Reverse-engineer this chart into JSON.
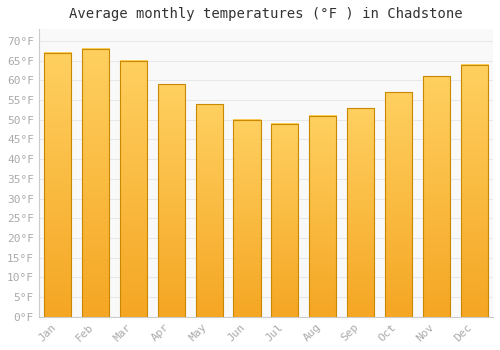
{
  "title": "Average monthly temperatures (°F ) in Chadstone",
  "months": [
    "Jan",
    "Feb",
    "Mar",
    "Apr",
    "May",
    "Jun",
    "Jul",
    "Aug",
    "Sep",
    "Oct",
    "Nov",
    "Dec"
  ],
  "values": [
    67,
    68,
    65,
    59,
    54,
    50,
    49,
    51,
    53,
    57,
    61,
    64
  ],
  "bar_color_bottom": "#F5A623",
  "bar_color_top": "#FFD060",
  "bar_edge_color": "#C88800",
  "ylim": [
    0,
    73
  ],
  "yticks": [
    0,
    5,
    10,
    15,
    20,
    25,
    30,
    35,
    40,
    45,
    50,
    55,
    60,
    65,
    70
  ],
  "ytick_labels": [
    "0°F",
    "5°F",
    "10°F",
    "15°F",
    "20°F",
    "25°F",
    "30°F",
    "35°F",
    "40°F",
    "45°F",
    "50°F",
    "55°F",
    "60°F",
    "65°F",
    "70°F"
  ],
  "background_color": "#ffffff",
  "plot_bg_color": "#f9f9f9",
  "grid_color": "#e8e8e8",
  "title_fontsize": 10,
  "tick_fontsize": 8,
  "tick_color": "#aaaaaa"
}
